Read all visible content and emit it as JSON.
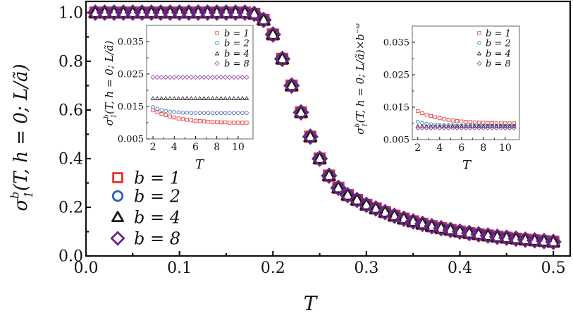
{
  "chart_data": [
    {
      "type": "scatter",
      "xlabel": "T",
      "ylabel": {
        "base": "σ",
        "sub": "1",
        "sup": "b",
        "rest": "(T, h = 0; L/ã)",
        "sup2": ""
      },
      "xlim": [
        0,
        0.518
      ],
      "ylim": [
        0,
        1.046
      ],
      "xticks": [
        0.0,
        0.1,
        0.2,
        0.3,
        0.4,
        0.5
      ],
      "xtick_labels": [
        "0.0",
        "0.1",
        "0.2",
        "0.3",
        "0.4",
        "0.5"
      ],
      "yticks": [
        0.0,
        0.2,
        0.4,
        0.6,
        0.8,
        1.0
      ],
      "ytick_labels": [
        "0.0",
        "0.2",
        "0.4",
        "0.6",
        "0.8",
        "1.0"
      ],
      "grid": false,
      "legend": "bottom-left",
      "x": [
        0.01,
        0.02,
        0.03,
        0.04,
        0.05,
        0.06,
        0.07,
        0.08,
        0.09,
        0.1,
        0.11,
        0.12,
        0.13,
        0.14,
        0.15,
        0.16,
        0.17,
        0.18,
        0.19,
        0.2,
        0.21,
        0.22,
        0.23,
        0.24,
        0.25,
        0.26,
        0.27,
        0.28,
        0.29,
        0.3,
        0.31,
        0.32,
        0.33,
        0.34,
        0.35,
        0.36,
        0.37,
        0.38,
        0.39,
        0.4,
        0.41,
        0.42,
        0.43,
        0.44,
        0.45,
        0.46,
        0.47,
        0.48,
        0.49,
        0.5
      ],
      "series": [
        {
          "name": "b = 1",
          "marker": "square",
          "color": "#e8302f",
          "values": [
            1,
            1,
            1,
            1,
            1,
            1,
            1,
            1,
            1,
            1,
            1,
            1,
            1,
            1,
            1,
            1,
            1,
            0.995,
            0.97,
            0.91,
            0.81,
            0.7,
            0.59,
            0.49,
            0.4,
            0.33,
            0.28,
            0.25,
            0.23,
            0.21,
            0.195,
            0.18,
            0.165,
            0.153,
            0.142,
            0.132,
            0.122,
            0.114,
            0.107,
            0.1,
            0.094,
            0.089,
            0.084,
            0.079,
            0.075,
            0.071,
            0.067,
            0.064,
            0.061,
            0.058
          ]
        },
        {
          "name": "b = 2",
          "marker": "circle",
          "color": "#2a5db0",
          "values": [
            1,
            1,
            1,
            1,
            1,
            1,
            1,
            1,
            1,
            1,
            1,
            1,
            1,
            1,
            1,
            1,
            1,
            0.995,
            0.97,
            0.91,
            0.81,
            0.7,
            0.59,
            0.49,
            0.4,
            0.33,
            0.28,
            0.25,
            0.23,
            0.21,
            0.195,
            0.18,
            0.165,
            0.153,
            0.142,
            0.132,
            0.122,
            0.114,
            0.107,
            0.1,
            0.094,
            0.089,
            0.084,
            0.079,
            0.075,
            0.071,
            0.067,
            0.064,
            0.061,
            0.058
          ]
        },
        {
          "name": "b = 4",
          "marker": "triangle",
          "color": "#1a1a1a",
          "values": [
            1,
            1,
            1,
            1,
            1,
            1,
            1,
            1,
            1,
            1,
            1,
            1,
            1,
            1,
            1,
            1,
            1,
            0.995,
            0.97,
            0.91,
            0.81,
            0.7,
            0.59,
            0.49,
            0.4,
            0.33,
            0.28,
            0.25,
            0.23,
            0.21,
            0.195,
            0.18,
            0.165,
            0.153,
            0.142,
            0.132,
            0.122,
            0.114,
            0.107,
            0.1,
            0.094,
            0.089,
            0.084,
            0.079,
            0.075,
            0.071,
            0.067,
            0.064,
            0.061,
            0.058
          ]
        },
        {
          "name": "b = 8",
          "marker": "diamond",
          "color": "#6e2383",
          "values": [
            1,
            1,
            1,
            1,
            1,
            1,
            1,
            1,
            1,
            1,
            1,
            1,
            1,
            1,
            1,
            1,
            1,
            0.995,
            0.97,
            0.91,
            0.81,
            0.7,
            0.59,
            0.49,
            0.4,
            0.33,
            0.28,
            0.25,
            0.23,
            0.21,
            0.195,
            0.18,
            0.165,
            0.153,
            0.142,
            0.132,
            0.122,
            0.114,
            0.107,
            0.1,
            0.094,
            0.089,
            0.084,
            0.079,
            0.075,
            0.071,
            0.067,
            0.064,
            0.061,
            0.058
          ]
        }
      ]
    },
    {
      "type": "scatter",
      "xlabel": "T",
      "ylabel": {
        "base": "σ",
        "sub": "1",
        "sup": "b",
        "rest": "(T, h = 0; L/ã)",
        "sup2": ""
      },
      "xlim": [
        1.4,
        11.4
      ],
      "ylim": [
        0.005,
        0.04
      ],
      "xticks": [
        2,
        4,
        6,
        8,
        10
      ],
      "xtick_labels": [
        "2",
        "4",
        "6",
        "8",
        "10"
      ],
      "yticks": [
        0.005,
        0.015,
        0.025,
        0.035
      ],
      "ytick_labels": [
        "0.005",
        "0.015",
        "0.025",
        "0.035"
      ],
      "grid": false,
      "legend": "top-right",
      "x": [
        2,
        2.4,
        2.8,
        3.2,
        3.6,
        4,
        4.4,
        4.8,
        5.2,
        5.6,
        6,
        6.4,
        6.8,
        7.2,
        7.6,
        8,
        8.4,
        8.8,
        9.2,
        9.6,
        10,
        10.4,
        10.8
      ],
      "series": [
        {
          "name": "b = 1",
          "marker": "square",
          "color": "#e8302f",
          "values": [
            0.0138,
            0.0132,
            0.0127,
            0.0123,
            0.0119,
            0.0116,
            0.0113,
            0.0111,
            0.0109,
            0.0107,
            0.0106,
            0.0105,
            0.0104,
            0.0103,
            0.0102,
            0.0102,
            0.0101,
            0.0101,
            0.01,
            0.01,
            0.01,
            0.01,
            0.01
          ]
        },
        {
          "name": "b = 2",
          "marker": "circle",
          "color": "#2a5db0",
          "values": [
            0.0148,
            0.0143,
            0.0139,
            0.0136,
            0.0134,
            0.0133,
            0.0132,
            0.0131,
            0.0131,
            0.013,
            0.013,
            0.013,
            0.013,
            0.013,
            0.013,
            0.013,
            0.013,
            0.013,
            0.013,
            0.013,
            0.013,
            0.013,
            0.013
          ]
        },
        {
          "name": "b = 4",
          "marker": "triangle",
          "color": "#1a1a1a",
          "values": [
            0.0175,
            0.0175,
            0.0175,
            0.0175,
            0.0175,
            0.0175,
            0.0175,
            0.0175,
            0.0175,
            0.0175,
            0.0175,
            0.0175,
            0.0175,
            0.0175,
            0.0175,
            0.0175,
            0.0175,
            0.0175,
            0.0175,
            0.0175,
            0.0175,
            0.0175,
            0.0175
          ]
        },
        {
          "name": "b = 8",
          "marker": "diamond",
          "color": "#8e3fa0",
          "values": [
            0.024,
            0.024,
            0.024,
            0.024,
            0.024,
            0.024,
            0.024,
            0.024,
            0.024,
            0.024,
            0.024,
            0.024,
            0.024,
            0.024,
            0.024,
            0.024,
            0.024,
            0.024,
            0.024,
            0.024,
            0.024,
            0.024,
            0.024
          ]
        }
      ]
    },
    {
      "type": "scatter",
      "xlabel": "T",
      "ylabel": {
        "base": "σ",
        "sub": "1",
        "sup": "b",
        "rest": "(T, h = 0; L/ã)×b",
        "sup2": "−ω"
      },
      "xlim": [
        1.5,
        11.3
      ],
      "ylim": [
        0.005,
        0.04
      ],
      "xticks": [
        2,
        4,
        6,
        8,
        10
      ],
      "xtick_labels": [
        "2",
        "4",
        "6",
        "8",
        "10"
      ],
      "yticks": [
        0.005,
        0.015,
        0.025,
        0.035
      ],
      "ytick_labels": [
        "0.005",
        "0.015",
        "0.025",
        "0.035"
      ],
      "grid": false,
      "legend": "top-right",
      "x": [
        2,
        2.4,
        2.8,
        3.2,
        3.6,
        4,
        4.4,
        4.8,
        5.2,
        5.6,
        6,
        6.4,
        6.8,
        7.2,
        7.6,
        8,
        8.4,
        8.8,
        9.2,
        9.6,
        10,
        10.4,
        10.8
      ],
      "series": [
        {
          "name": "b = 1",
          "marker": "square",
          "color": "#e8302f",
          "values": [
            0.0138,
            0.0132,
            0.0127,
            0.0123,
            0.0119,
            0.0116,
            0.0113,
            0.0111,
            0.0109,
            0.0107,
            0.0106,
            0.0105,
            0.0104,
            0.0103,
            0.0102,
            0.0102,
            0.0101,
            0.0101,
            0.01,
            0.01,
            0.01,
            0.01,
            0.01
          ]
        },
        {
          "name": "b = 2",
          "marker": "circle",
          "color": "#2a5db0",
          "values": [
            0.0105,
            0.0101,
            0.0099,
            0.0097,
            0.0096,
            0.0095,
            0.0094,
            0.0094,
            0.0094,
            0.0093,
            0.0093,
            0.0093,
            0.0093,
            0.0093,
            0.0093,
            0.0093,
            0.0093,
            0.0093,
            0.0093,
            0.0093,
            0.0093,
            0.0093,
            0.0093
          ]
        },
        {
          "name": "b = 4",
          "marker": "triangle",
          "color": "#1a1a1a",
          "values": [
            0.0091,
            0.0091,
            0.0091,
            0.0091,
            0.0091,
            0.0091,
            0.0091,
            0.0091,
            0.0091,
            0.0091,
            0.0091,
            0.0091,
            0.0091,
            0.0091,
            0.0091,
            0.0091,
            0.0091,
            0.0091,
            0.0091,
            0.0091,
            0.0091,
            0.0091,
            0.0091
          ]
        },
        {
          "name": "b = 8",
          "marker": "diamond",
          "color": "#8e3fa0",
          "values": [
            0.0086,
            0.0086,
            0.0086,
            0.0086,
            0.0086,
            0.0086,
            0.0086,
            0.0086,
            0.0086,
            0.0086,
            0.0086,
            0.0086,
            0.0086,
            0.0086,
            0.0086,
            0.0086,
            0.0086,
            0.0086,
            0.0086,
            0.0086,
            0.0086,
            0.0086,
            0.0086
          ]
        }
      ]
    }
  ]
}
